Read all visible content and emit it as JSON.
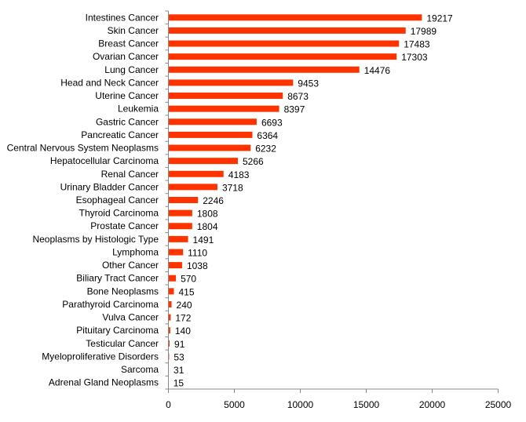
{
  "chart_data": {
    "type": "bar",
    "orientation": "horizontal",
    "title": "",
    "xlabel": "",
    "ylabel": "",
    "xlim": [
      0,
      25000
    ],
    "xticks": [
      0,
      5000,
      10000,
      15000,
      20000,
      25000
    ],
    "grid": false,
    "legend": "none",
    "bar_color": "#FF3300",
    "categories": [
      "Intestines Cancer",
      "Skin Cancer",
      "Breast Cancer",
      "Ovarian Cancer",
      "Lung Cancer",
      "Head and Neck Cancer",
      "Uterine Cancer",
      "Leukemia",
      "Gastric Cancer",
      "Pancreatic Cancer",
      "Central Nervous System Neoplasms",
      "Hepatocellular Carcinoma",
      "Renal Cancer",
      "Urinary Bladder Cancer",
      "Esophageal Cancer",
      "Thyroid Carcinoma",
      "Prostate Cancer",
      "Neoplasms by Histologic Type",
      "Lymphoma",
      "Other Cancer",
      "Biliary Tract Cancer",
      "Bone Neoplasms",
      "Parathyroid Carcinoma",
      "Vulva Cancer",
      "Pituitary Carcinoma",
      "Testicular Cancer",
      "Myeloproliferative Disorders",
      "Sarcoma",
      "Adrenal Gland Neoplasms"
    ],
    "values": [
      19217,
      17989,
      17483,
      17303,
      14476,
      9453,
      8673,
      8397,
      6693,
      6364,
      6232,
      5266,
      4183,
      3718,
      2246,
      1808,
      1804,
      1491,
      1110,
      1038,
      570,
      415,
      240,
      172,
      140,
      91,
      53,
      31,
      15
    ]
  }
}
